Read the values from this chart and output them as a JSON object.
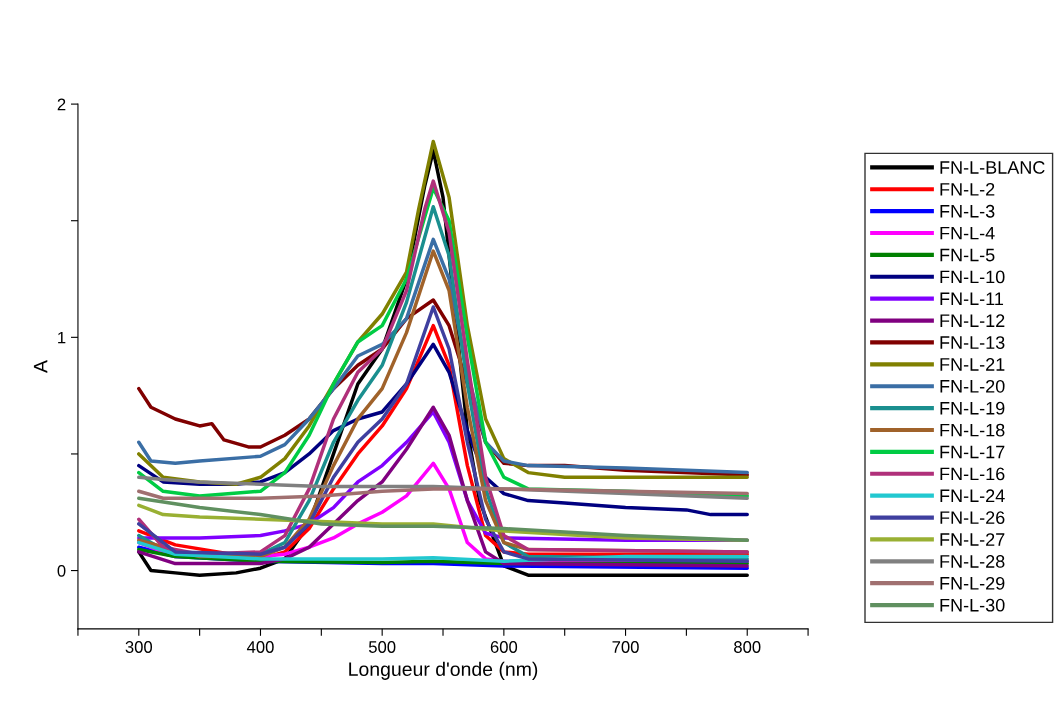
{
  "chart_data": {
    "type": "line",
    "xlabel": "Longueur d'onde (nm)",
    "ylabel": "A",
    "xlim": [
      250,
      850
    ],
    "ylim": [
      -0.25,
      2
    ],
    "xticks": [
      {
        "value": 250,
        "label": null
      },
      300,
      {
        "value": 350,
        "label": null
      },
      400,
      {
        "value": 450,
        "label": null
      },
      500,
      {
        "value": 550,
        "label": null
      },
      600,
      {
        "value": 650,
        "label": null
      },
      700,
      {
        "value": 750,
        "label": null
      },
      800,
      {
        "value": 850,
        "label": null
      }
    ],
    "yticks": [
      0,
      {
        "value": 0.5,
        "label": null
      },
      1,
      {
        "value": 1.5,
        "label": null
      },
      2
    ],
    "grid": false,
    "legend": "right",
    "line_style": "solid",
    "marker": "none",
    "series": [
      {
        "name": "FN-L-BLANC",
        "color": "#000000",
        "x": [
          300,
          310,
          330,
          350,
          380,
          400,
          420,
          440,
          460,
          480,
          500,
          520,
          535,
          542,
          550,
          560,
          570,
          580,
          600,
          620,
          650,
          700,
          800
        ],
        "values": [
          0.08,
          0.0,
          -0.01,
          -0.02,
          -0.01,
          0.01,
          0.05,
          0.2,
          0.5,
          0.8,
          0.95,
          1.25,
          1.65,
          1.8,
          1.6,
          1.1,
          0.6,
          0.3,
          0.02,
          -0.02,
          -0.02,
          -0.02,
          -0.02
        ]
      },
      {
        "name": "FN-L-2",
        "color": "#ff0000",
        "x": [
          300,
          330,
          400,
          420,
          440,
          460,
          480,
          500,
          520,
          542,
          555,
          570,
          585,
          600,
          620,
          800
        ],
        "values": [
          0.17,
          0.11,
          0.05,
          0.08,
          0.18,
          0.35,
          0.5,
          0.62,
          0.78,
          1.05,
          0.88,
          0.45,
          0.15,
          0.08,
          0.07,
          0.07
        ]
      },
      {
        "name": "FN-L-3",
        "color": "#0000ff",
        "x": [
          300,
          330,
          400,
          500,
          542,
          600,
          800
        ],
        "values": [
          0.1,
          0.06,
          0.04,
          0.03,
          0.03,
          0.02,
          0.01
        ]
      },
      {
        "name": "FN-L-4",
        "color": "#ff00ff",
        "x": [
          300,
          330,
          400,
          420,
          440,
          460,
          480,
          500,
          520,
          542,
          555,
          570,
          585,
          600,
          800
        ],
        "values": [
          0.12,
          0.06,
          0.06,
          0.07,
          0.1,
          0.14,
          0.2,
          0.25,
          0.32,
          0.46,
          0.35,
          0.12,
          0.05,
          0.04,
          0.04
        ]
      },
      {
        "name": "FN-L-5",
        "color": "#008000",
        "x": [
          300,
          330,
          400,
          500,
          542,
          600,
          800
        ],
        "values": [
          0.09,
          0.06,
          0.04,
          0.035,
          0.04,
          0.03,
          0.03
        ]
      },
      {
        "name": "FN-L-10",
        "color": "#000080",
        "x": [
          300,
          320,
          350,
          380,
          400,
          420,
          440,
          460,
          480,
          500,
          520,
          542,
          555,
          570,
          585,
          600,
          620,
          650,
          700,
          750,
          770,
          800
        ],
        "values": [
          0.45,
          0.38,
          0.37,
          0.37,
          0.38,
          0.42,
          0.5,
          0.6,
          0.65,
          0.68,
          0.8,
          0.97,
          0.85,
          0.6,
          0.4,
          0.33,
          0.3,
          0.29,
          0.27,
          0.26,
          0.24,
          0.24
        ]
      },
      {
        "name": "FN-L-11",
        "color": "#8000ff",
        "x": [
          300,
          320,
          350,
          400,
          420,
          440,
          460,
          480,
          500,
          520,
          542,
          555,
          570,
          585,
          600,
          700,
          800
        ],
        "values": [
          0.14,
          0.14,
          0.14,
          0.15,
          0.17,
          0.2,
          0.27,
          0.38,
          0.45,
          0.55,
          0.68,
          0.55,
          0.3,
          0.16,
          0.14,
          0.13,
          0.13
        ]
      },
      {
        "name": "FN-L-12",
        "color": "#800080",
        "x": [
          300,
          330,
          400,
          420,
          440,
          460,
          480,
          500,
          520,
          542,
          555,
          570,
          585,
          600,
          800
        ],
        "values": [
          0.08,
          0.03,
          0.03,
          0.05,
          0.1,
          0.2,
          0.3,
          0.38,
          0.52,
          0.7,
          0.58,
          0.3,
          0.08,
          0.03,
          0.02
        ]
      },
      {
        "name": "FN-L-13",
        "color": "#800000",
        "x": [
          300,
          310,
          330,
          350,
          360,
          370,
          390,
          400,
          420,
          440,
          460,
          480,
          500,
          520,
          542,
          555,
          570,
          585,
          600,
          620,
          650,
          700,
          800
        ],
        "values": [
          0.78,
          0.7,
          0.65,
          0.62,
          0.63,
          0.56,
          0.53,
          0.53,
          0.58,
          0.65,
          0.78,
          0.88,
          0.95,
          1.08,
          1.16,
          1.05,
          0.8,
          0.55,
          0.46,
          0.45,
          0.45,
          0.43,
          0.41
        ]
      },
      {
        "name": "FN-L-21",
        "color": "#808000",
        "x": [
          300,
          320,
          350,
          380,
          400,
          420,
          440,
          460,
          480,
          500,
          520,
          530,
          542,
          555,
          570,
          585,
          600,
          620,
          650,
          800
        ],
        "values": [
          0.5,
          0.4,
          0.38,
          0.37,
          0.4,
          0.48,
          0.62,
          0.8,
          0.98,
          1.1,
          1.28,
          1.55,
          1.84,
          1.6,
          1.05,
          0.65,
          0.48,
          0.42,
          0.4,
          0.4
        ]
      },
      {
        "name": "FN-L-20",
        "color": "#3a6ea5",
        "x": [
          300,
          310,
          330,
          350,
          400,
          420,
          440,
          460,
          480,
          500,
          520,
          542,
          555,
          570,
          585,
          600,
          620,
          700,
          800
        ],
        "values": [
          0.55,
          0.47,
          0.46,
          0.47,
          0.49,
          0.54,
          0.65,
          0.78,
          0.92,
          0.97,
          1.08,
          1.42,
          1.25,
          0.85,
          0.55,
          0.47,
          0.45,
          0.44,
          0.42
        ]
      },
      {
        "name": "FN-L-19",
        "color": "#1a8f8f",
        "x": [
          300,
          320,
          350,
          400,
          420,
          440,
          460,
          480,
          500,
          520,
          542,
          555,
          570,
          585,
          600,
          620,
          800
        ],
        "values": [
          0.15,
          0.09,
          0.07,
          0.07,
          0.12,
          0.3,
          0.55,
          0.73,
          0.88,
          1.15,
          1.56,
          1.35,
          0.8,
          0.35,
          0.12,
          0.06,
          0.05
        ]
      },
      {
        "name": "FN-L-18",
        "color": "#a0622a",
        "x": [
          300,
          350,
          400,
          420,
          440,
          460,
          480,
          500,
          520,
          542,
          555,
          570,
          585,
          600,
          620,
          800
        ],
        "values": [
          0.13,
          0.06,
          0.06,
          0.1,
          0.22,
          0.45,
          0.65,
          0.78,
          1.02,
          1.37,
          1.2,
          0.7,
          0.3,
          0.12,
          0.09,
          0.08
        ]
      },
      {
        "name": "FN-L-17",
        "color": "#00cc44",
        "x": [
          300,
          320,
          350,
          400,
          420,
          440,
          460,
          480,
          500,
          520,
          542,
          555,
          570,
          585,
          600,
          620,
          700,
          800
        ],
        "values": [
          0.42,
          0.34,
          0.32,
          0.34,
          0.42,
          0.58,
          0.8,
          0.98,
          1.05,
          1.25,
          1.64,
          1.5,
          1.0,
          0.55,
          0.4,
          0.35,
          0.34,
          0.32
        ]
      },
      {
        "name": "FN-L-16",
        "color": "#b0307a",
        "x": [
          300,
          320,
          350,
          400,
          420,
          440,
          460,
          480,
          500,
          520,
          535,
          542,
          555,
          570,
          585,
          600,
          620,
          800
        ],
        "values": [
          0.22,
          0.1,
          0.07,
          0.08,
          0.15,
          0.35,
          0.65,
          0.85,
          0.95,
          1.2,
          1.55,
          1.67,
          1.45,
          0.9,
          0.4,
          0.15,
          0.09,
          0.08
        ]
      },
      {
        "name": "FN-L-24",
        "color": "#22c8d0",
        "x": [
          300,
          330,
          400,
          500,
          542,
          600,
          700,
          800
        ],
        "values": [
          0.12,
          0.07,
          0.05,
          0.05,
          0.055,
          0.04,
          0.06,
          0.06
        ]
      },
      {
        "name": "FN-L-26",
        "color": "#3f3f9f",
        "x": [
          300,
          330,
          400,
          420,
          440,
          460,
          480,
          500,
          520,
          542,
          555,
          570,
          585,
          600,
          620,
          800
        ],
        "values": [
          0.2,
          0.08,
          0.07,
          0.1,
          0.2,
          0.4,
          0.55,
          0.65,
          0.8,
          1.13,
          0.95,
          0.55,
          0.22,
          0.08,
          0.05,
          0.04
        ]
      },
      {
        "name": "FN-L-27",
        "color": "#99b033",
        "x": [
          300,
          320,
          350,
          400,
          450,
          500,
          542,
          600,
          700,
          800
        ],
        "values": [
          0.28,
          0.24,
          0.23,
          0.22,
          0.21,
          0.2,
          0.2,
          0.17,
          0.14,
          0.13
        ]
      },
      {
        "name": "FN-L-28",
        "color": "#808080",
        "x": [
          300,
          320,
          350,
          400,
          450,
          500,
          542,
          600,
          700,
          800
        ],
        "values": [
          0.4,
          0.39,
          0.38,
          0.37,
          0.36,
          0.36,
          0.36,
          0.35,
          0.33,
          0.31
        ]
      },
      {
        "name": "FN-L-29",
        "color": "#a07070",
        "x": [
          300,
          320,
          400,
          450,
          500,
          542,
          600,
          700,
          800
        ],
        "values": [
          0.34,
          0.31,
          0.31,
          0.32,
          0.34,
          0.35,
          0.35,
          0.34,
          0.33
        ]
      },
      {
        "name": "FN-L-30",
        "color": "#609060",
        "x": [
          300,
          350,
          400,
          450,
          500,
          542,
          600,
          700,
          800
        ],
        "values": [
          0.31,
          0.27,
          0.24,
          0.2,
          0.19,
          0.19,
          0.18,
          0.15,
          0.13
        ]
      }
    ]
  }
}
